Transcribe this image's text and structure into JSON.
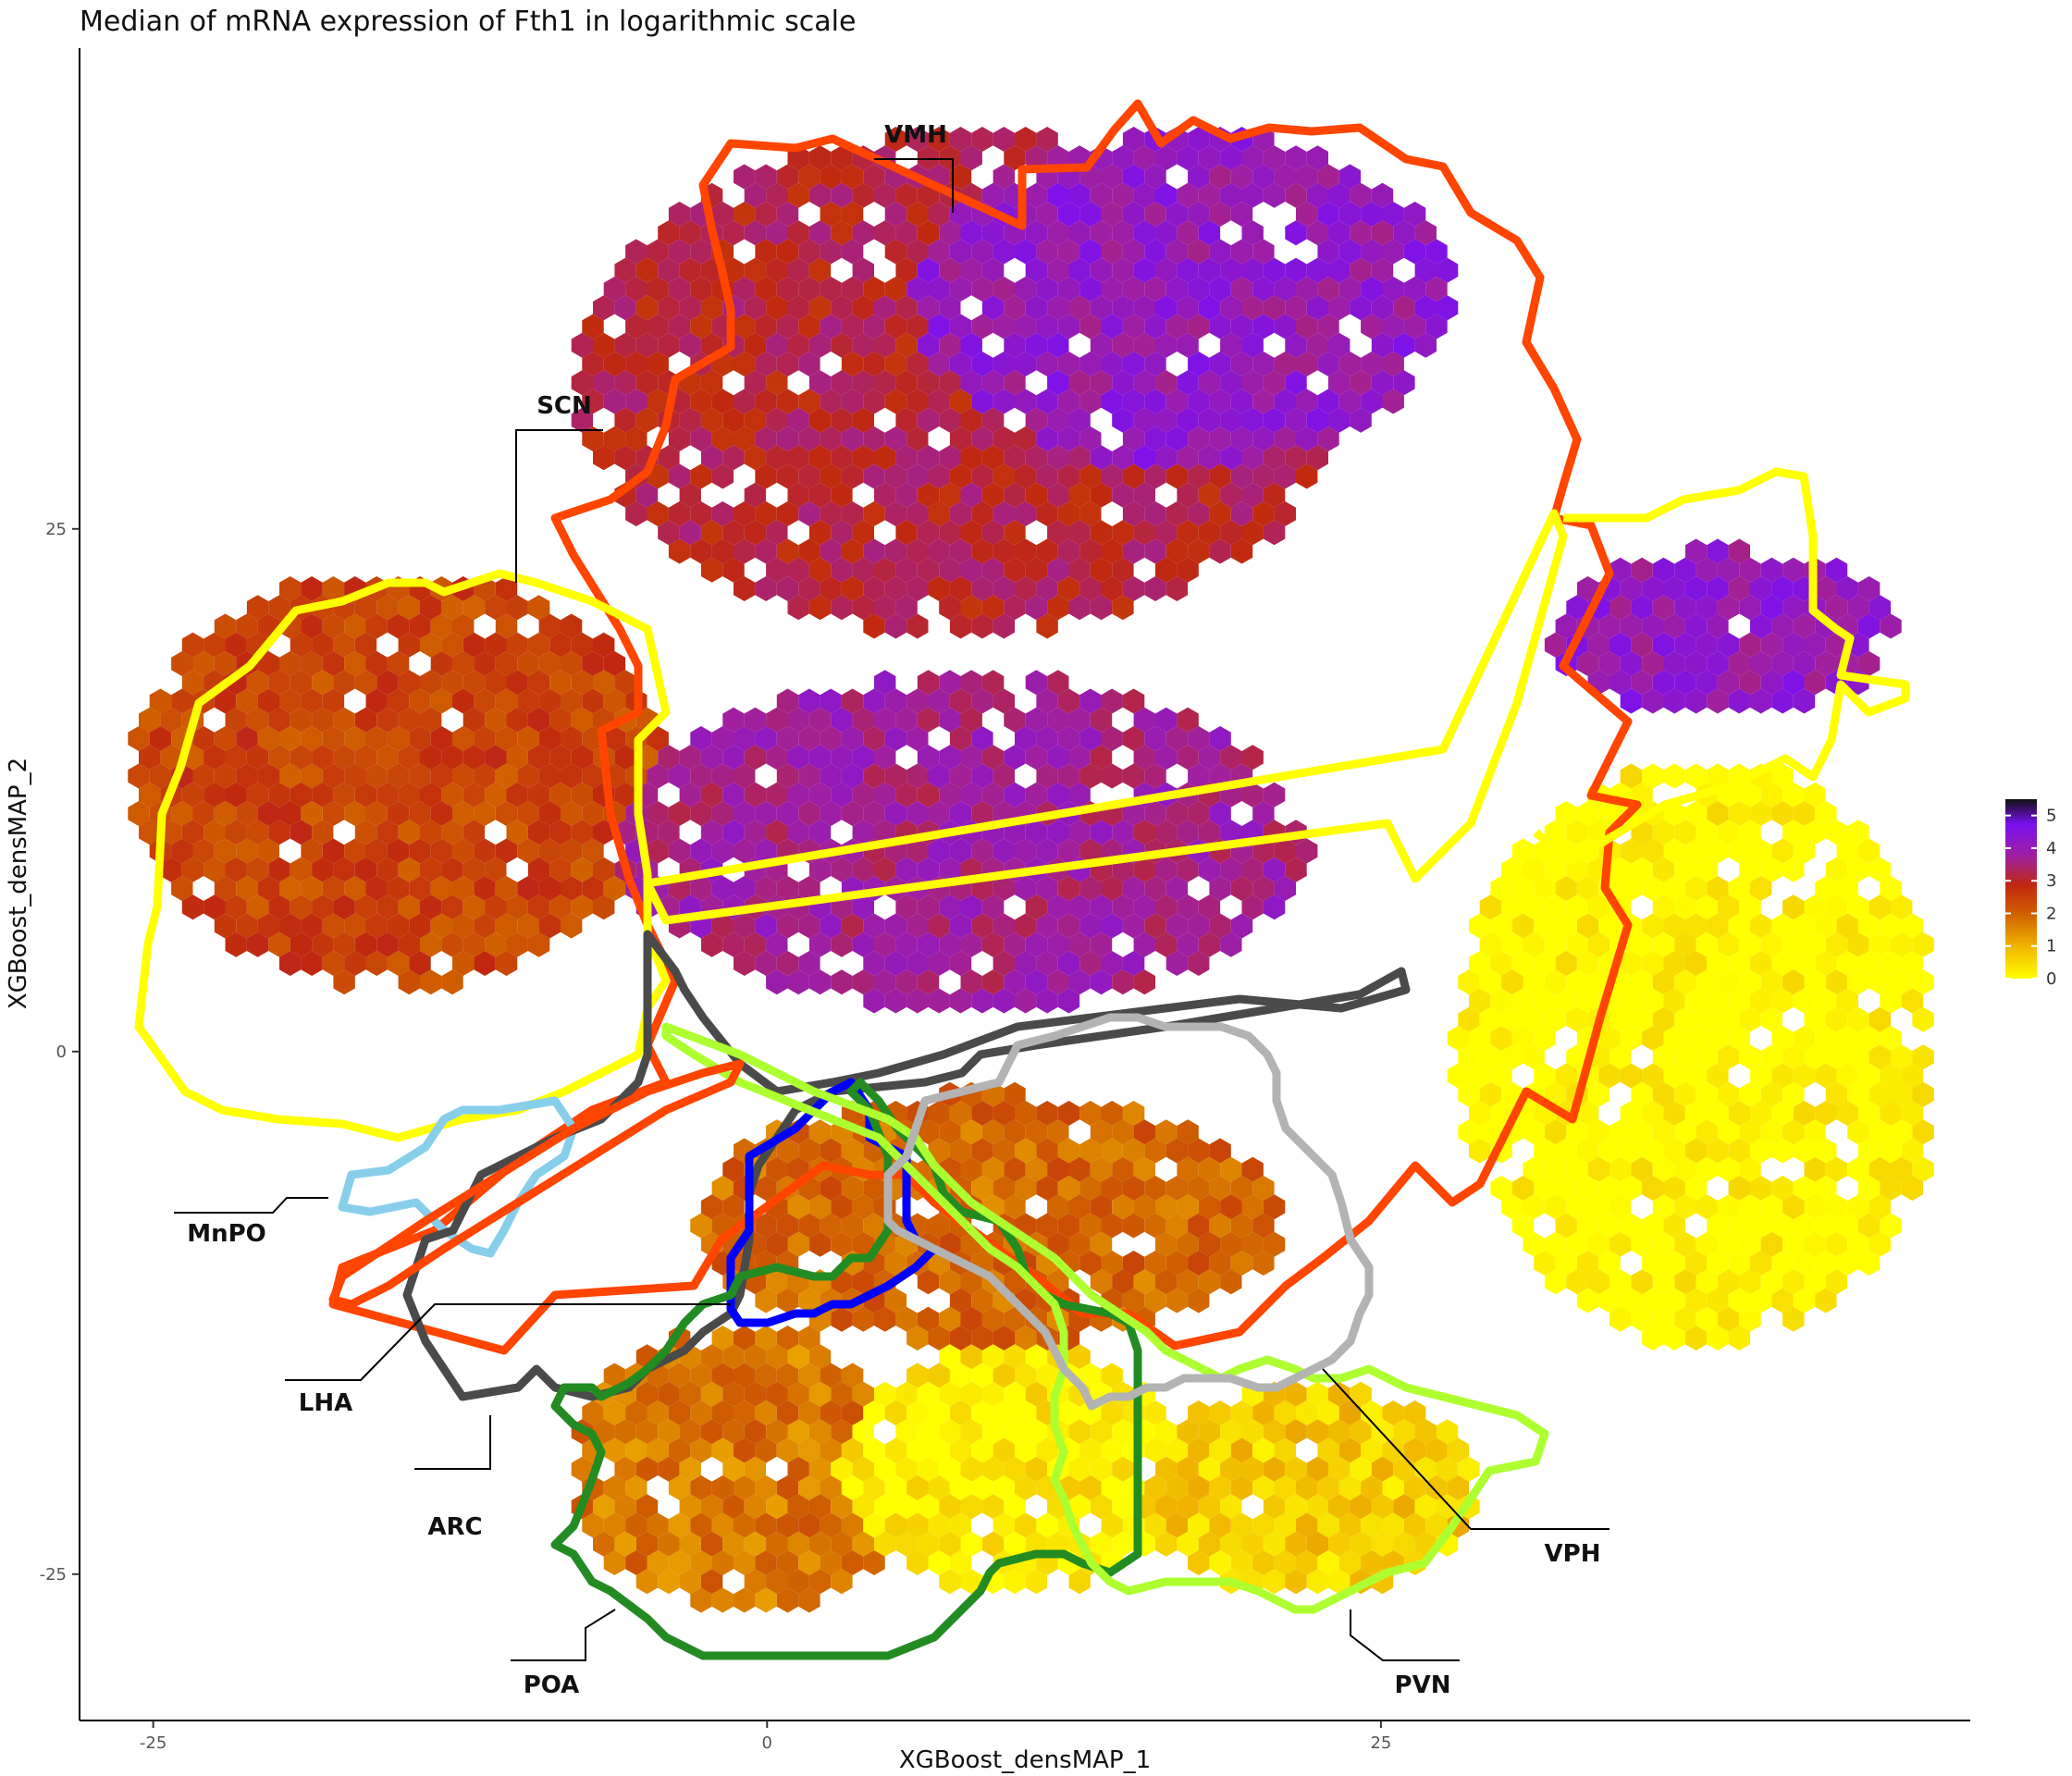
{
  "chart_data": {
    "type": "hexbin",
    "title": "Median of mRNA expression of Fth1 in logarithmic scale",
    "xlabel": "XGBoost_densMAP_1",
    "ylabel": "XGBoost_densMAP_2",
    "xlim": [
      -28,
      49
    ],
    "ylim": [
      -32,
      48
    ],
    "x_ticks": [
      -25,
      0,
      25
    ],
    "y_ticks": [
      -25,
      0,
      25
    ],
    "x_tick_labels": [
      "-25",
      "0",
      "25"
    ],
    "y_tick_labels": [
      "-25",
      "0",
      "25"
    ],
    "grid": false,
    "legend": {
      "placement": "right",
      "type": "colorbar",
      "min": 0,
      "max": 5.5,
      "ticks": [
        0,
        1,
        2,
        3,
        4,
        5
      ],
      "tick_labels": [
        "0",
        "1",
        "2",
        "3",
        "4",
        "5"
      ],
      "colors": [
        "#ffff00",
        "#f0b400",
        "#d06000",
        "#c02810",
        "#a020a0",
        "#7a10f0",
        "#101010"
      ]
    },
    "cell_groups": [
      {
        "region": "left-cluster",
        "center": [
          -15,
          13
        ],
        "radii": [
          11,
          10
        ],
        "value": 2.3
      },
      {
        "region": "top-main",
        "center": [
          8,
          32
        ],
        "radii": [
          16,
          12
        ],
        "value": 3.0
      },
      {
        "region": "vmh-core",
        "center": [
          17,
          36
        ],
        "radii": [
          11,
          8
        ],
        "value": 4.0
      },
      {
        "region": "central-band",
        "center": [
          8,
          10
        ],
        "radii": [
          14,
          8
        ],
        "value": 3.6
      },
      {
        "region": "right-upper",
        "center": [
          39,
          20
        ],
        "radii": [
          7,
          4
        ],
        "value": 4.0
      },
      {
        "region": "right-yellow",
        "center": [
          38,
          0
        ],
        "radii": [
          10,
          14
        ],
        "value": 0.0
      },
      {
        "region": "lower-center",
        "center": [
          9,
          -8
        ],
        "radii": [
          12,
          6
        ],
        "value": 1.8
      },
      {
        "region": "poa-area",
        "center": [
          -1,
          -20
        ],
        "radii": [
          7,
          7
        ],
        "value": 1.6
      },
      {
        "region": "lower-yellow",
        "center": [
          10,
          -20
        ],
        "radii": [
          7,
          6
        ],
        "value": 0.2
      },
      {
        "region": "pvn-area",
        "center": [
          22,
          -21
        ],
        "radii": [
          7,
          5
        ],
        "value": 0.6
      }
    ],
    "regions": [
      {
        "name": "VMH",
        "label": "VMH",
        "color": "#ff4500"
      },
      {
        "name": "SCN",
        "label": "SCN",
        "color": "#ffff00"
      },
      {
        "name": "MnPO",
        "label": "MnPO",
        "color": "#87ceeb"
      },
      {
        "name": "LHA",
        "label": "LHA",
        "color": "#4a4a4a"
      },
      {
        "name": "ARC",
        "label": "ARC",
        "color": "#0000ff"
      },
      {
        "name": "POA",
        "label": "POA",
        "color": "#228b22"
      },
      {
        "name": "PVN",
        "label": "PVN",
        "color": "#adff2f"
      },
      {
        "name": "VPH",
        "label": "VPH",
        "color": "#b3b3b3"
      }
    ]
  }
}
